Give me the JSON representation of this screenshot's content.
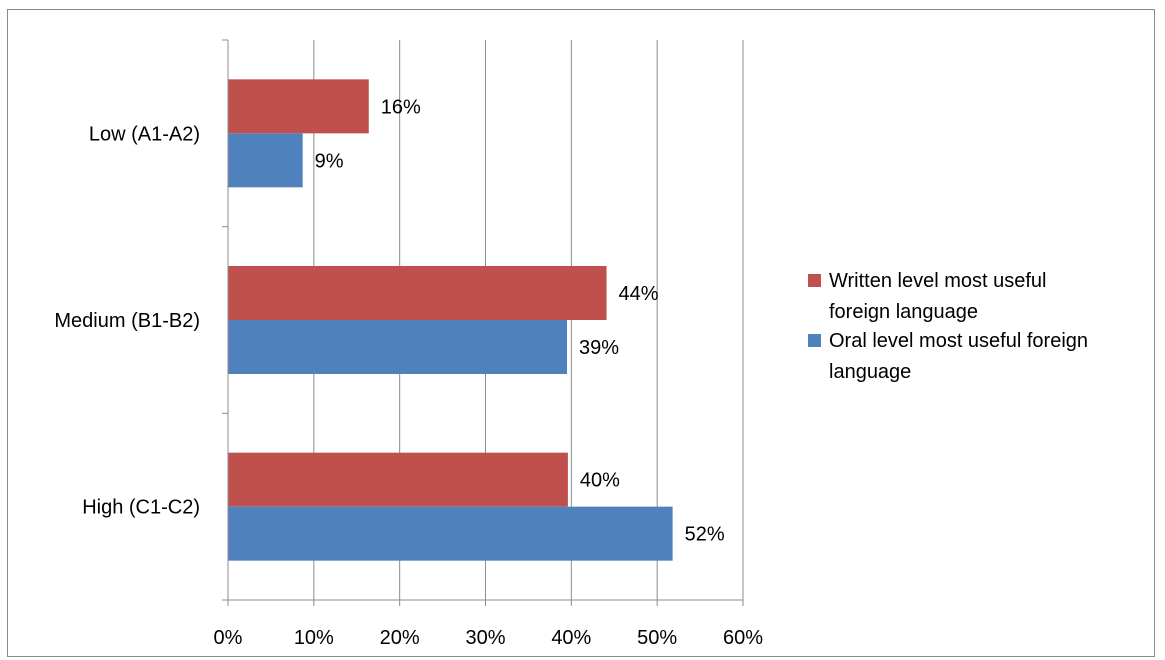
{
  "chart_data": {
    "type": "bar",
    "orientation": "horizontal",
    "categories": [
      "Low (A1-A2)",
      "Medium (B1-B2)",
      "High (C1-C2)"
    ],
    "series": [
      {
        "name": "Written level most useful foreign language",
        "color": "#c0504d",
        "values": [
          16.4,
          44.1,
          39.6
        ],
        "labels": [
          "16%",
          "44%",
          "40%"
        ]
      },
      {
        "name": "Oral level most useful foreign language",
        "color": "#4f81bd",
        "values": [
          8.7,
          39.5,
          51.8
        ],
        "labels": [
          "9%",
          "39%",
          "52%"
        ]
      }
    ],
    "xlim": [
      0,
      60
    ],
    "xticks": [
      0,
      10,
      20,
      30,
      40,
      50,
      60
    ],
    "xtick_labels": [
      "0%",
      "10%",
      "20%",
      "30%",
      "40%",
      "50%",
      "60%"
    ],
    "grid": "vertical",
    "legend": {
      "position": "right",
      "entries": [
        {
          "lines": [
            "Written level most useful",
            "foreign language"
          ],
          "color": "#c0504d"
        },
        {
          "lines": [
            "Oral level most useful foreign",
            "language"
          ],
          "color": "#4f81bd"
        }
      ]
    },
    "title": "",
    "xlabel": "",
    "ylabel": ""
  }
}
